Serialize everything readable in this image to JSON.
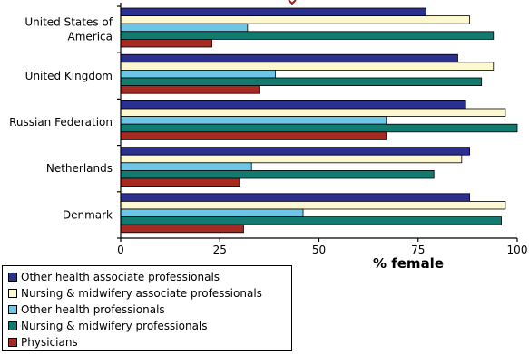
{
  "chart_data": {
    "type": "bar",
    "orientation": "horizontal",
    "title": "",
    "xlabel": "% female",
    "ylabel": "",
    "xlim": [
      0,
      100
    ],
    "xticks": [
      0,
      25,
      50,
      75,
      100
    ],
    "grid": false,
    "legend_placement": "bottom-left",
    "categories": [
      "United States of America",
      "United Kingdom",
      "Russian Federation",
      "Netherlands",
      "Denmark"
    ],
    "category_labels": [
      [
        "United States of",
        "America"
      ],
      [
        "United Kingdom"
      ],
      [
        "Russian Federation"
      ],
      [
        "Netherlands"
      ],
      [
        "Denmark"
      ]
    ],
    "series": [
      {
        "name": "Other health associate professionals",
        "color": "#2b2f8f",
        "values": [
          77,
          85,
          87,
          88,
          88
        ]
      },
      {
        "name": "Nursing & midwifery associate professionals",
        "color": "#fdf8d0",
        "values": [
          88,
          94,
          97,
          86,
          97
        ]
      },
      {
        "name": "Other health professionals",
        "color": "#6ec6e6",
        "values": [
          32,
          39,
          67,
          33,
          46
        ]
      },
      {
        "name": "Nursing & midwifery professionals",
        "color": "#127a6e",
        "values": [
          94,
          91,
          100,
          79,
          96
        ]
      },
      {
        "name": "Physicians",
        "color": "#a52a22",
        "values": [
          23,
          35,
          67,
          30,
          31
        ]
      }
    ]
  }
}
